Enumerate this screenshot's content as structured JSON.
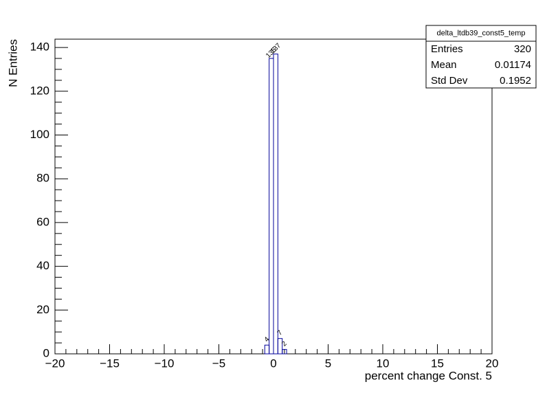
{
  "chart_data": {
    "type": "histogram",
    "x_label": "percent change Const. 5",
    "y_label": "N Entries",
    "bins": [
      -0.8,
      -0.4,
      0,
      0.4,
      0.8,
      1.2
    ],
    "counts": [
      4,
      135,
      137,
      7,
      2
    ],
    "color": "#000099",
    "xlim": [
      -20,
      20
    ],
    "xticks": [
      {
        "value": -20,
        "label": "−20"
      },
      {
        "value": -15,
        "label": "−15"
      },
      {
        "value": -10,
        "label": "−10"
      },
      {
        "value": -5,
        "label": "−5"
      },
      0,
      5,
      10,
      15,
      20
    ],
    "ylim": [
      0,
      143.8
    ],
    "yticks": [
      0,
      20,
      40,
      60,
      80,
      100,
      120,
      140
    ],
    "stats": {
      "title": "delta_ltdb39_const5_temp",
      "rows": [
        [
          "Entries",
          320
        ],
        [
          "Mean",
          0.01174
        ],
        [
          "Std Dev",
          0.1952
        ]
      ]
    }
  }
}
